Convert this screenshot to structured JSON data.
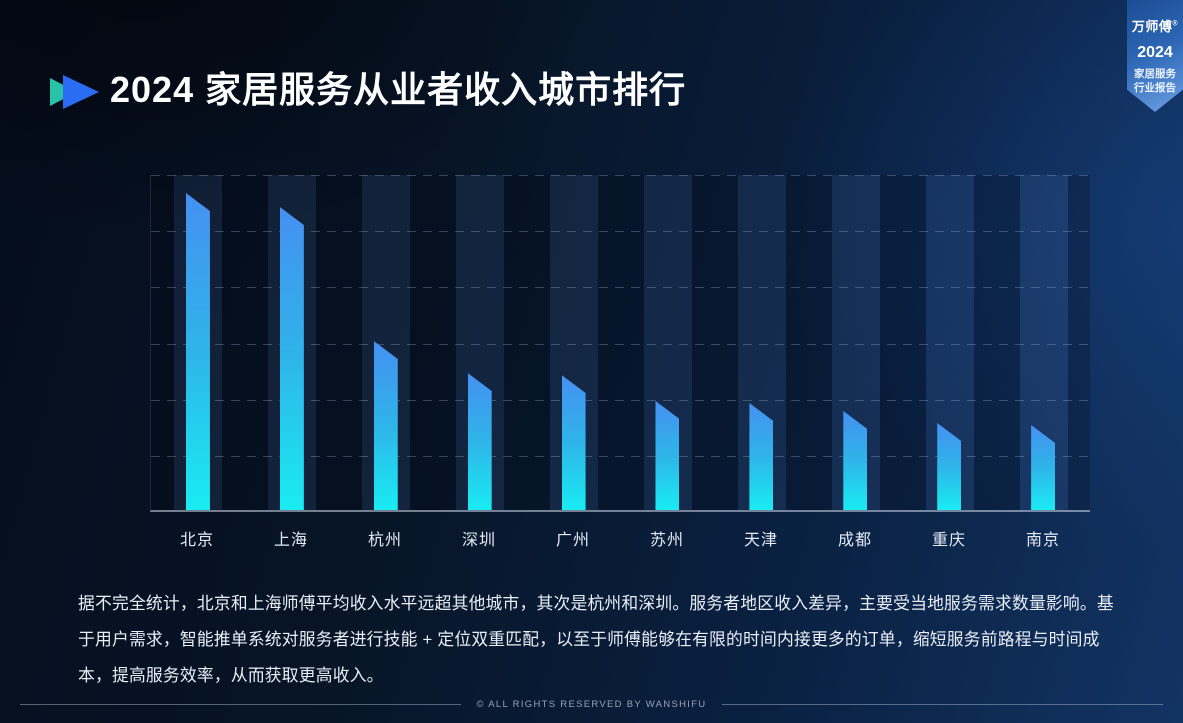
{
  "page": {
    "title": "2024 家居服务从业者收入城市排行"
  },
  "ribbon": {
    "brand": "万师傅",
    "reg_mark": "®",
    "year": "2024",
    "line1": "家居服务",
    "line2": "行业报告"
  },
  "chart_data": {
    "type": "bar",
    "title": "2024 家居服务从业者收入城市排行",
    "categories": [
      "北京",
      "上海",
      "杭州",
      "深圳",
      "广州",
      "苏州",
      "天津",
      "成都",
      "重庆",
      "南京"
    ],
    "values": [
      100,
      95.6,
      53.3,
      43.2,
      42.6,
      34.4,
      33.8,
      31.2,
      27.4,
      26.8
    ],
    "unit": "relative income index (y-axis has no numeric labels)",
    "xlabel": "",
    "ylabel": "",
    "ylim": [
      0,
      106
    ],
    "grid": "horizontal dashed lines, striped column background",
    "legend": "none",
    "bar_style": {
      "gradient_top": "#4590f1",
      "gradient_bottom": "#19ecf2",
      "slanted_top": true
    }
  },
  "description": {
    "lines": [
      "据不完全统计，北京和上海师傅平均收入水平远超其他城市，其次是杭州和深圳。服务者地区收入差异，主要受当地服务需求数量影响。基",
      "于用户需求，智能推单系统对服务者进行技能 + 定位双重匹配，以至于师傅能够在有限的时间内接更多的订单，缩短服务前路程与时间成",
      "本，提高服务效率，从而获取更高收入。"
    ]
  },
  "footer": {
    "copyright": "© ALL RIGHTS RESERVED BY WANSHIFU"
  },
  "colors": {
    "accent_teal": "#29c2a8",
    "accent_blue": "#2a6cf4",
    "bar_top": "#4590f1",
    "bar_bottom": "#19ecf2",
    "ribbon_dark": "#1c4c92",
    "ribbon_light": "#6ba0e4",
    "background_dark": "#050d1d",
    "background_light": "#123463"
  }
}
